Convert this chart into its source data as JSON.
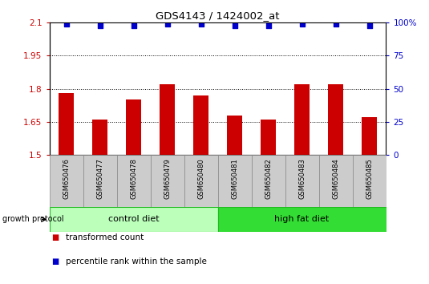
{
  "title": "GDS4143 / 1424002_at",
  "samples": [
    "GSM650476",
    "GSM650477",
    "GSM650478",
    "GSM650479",
    "GSM650480",
    "GSM650481",
    "GSM650482",
    "GSM650483",
    "GSM650484",
    "GSM650485"
  ],
  "transformed_counts": [
    1.78,
    1.66,
    1.75,
    1.82,
    1.77,
    1.68,
    1.66,
    1.82,
    1.82,
    1.67
  ],
  "percentile_ranks": [
    99,
    98,
    98,
    99,
    99,
    98,
    98,
    99,
    99,
    98
  ],
  "bar_color": "#cc0000",
  "dot_color": "#0000cc",
  "ylim_left": [
    1.5,
    2.1
  ],
  "ylim_right": [
    0,
    100
  ],
  "yticks_left": [
    1.5,
    1.65,
    1.8,
    1.95,
    2.1
  ],
  "ytick_labels_left": [
    "1.5",
    "1.65",
    "1.8",
    "1.95",
    "2.1"
  ],
  "yticks_right": [
    0,
    25,
    50,
    75,
    100
  ],
  "ytick_labels_right": [
    "0",
    "25",
    "50",
    "75",
    "100%"
  ],
  "hlines": [
    1.65,
    1.8,
    1.95
  ],
  "groups": [
    {
      "label": "control diet",
      "indices": [
        0,
        1,
        2,
        3,
        4
      ],
      "color": "#bbffbb",
      "edgecolor": "#22bb22"
    },
    {
      "label": "high fat diet",
      "indices": [
        5,
        6,
        7,
        8,
        9
      ],
      "color": "#33dd33",
      "edgecolor": "#22bb22"
    }
  ],
  "group_label": "growth protocol",
  "legend_items": [
    {
      "label": "transformed count",
      "color": "#cc0000"
    },
    {
      "label": "percentile rank within the sample",
      "color": "#0000cc"
    }
  ],
  "tick_area_color": "#cccccc",
  "tick_area_edgecolor": "#888888",
  "bar_width": 0.45,
  "dot_size": 18
}
